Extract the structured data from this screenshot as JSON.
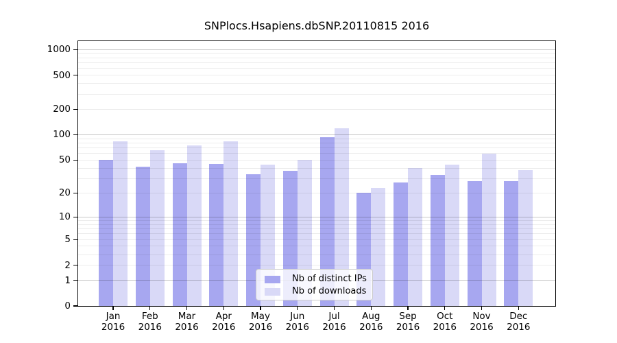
{
  "chart_data": {
    "type": "bar",
    "title": "SNPlocs.Hsapiens.dbSNP.20110815 2016",
    "year": "2016",
    "categories": [
      "Jan",
      "Feb",
      "Mar",
      "Apr",
      "May",
      "Jun",
      "Jul",
      "Aug",
      "Sep",
      "Oct",
      "Nov",
      "Dec"
    ],
    "series": [
      {
        "name": "Nb of distinct IPs",
        "color": "#a7a7f0",
        "values": [
          50,
          42,
          46,
          45,
          34,
          37,
          94,
          20,
          27,
          33,
          28,
          28
        ]
      },
      {
        "name": "Nb of downloads",
        "color": "#d9d9f7",
        "values": [
          84,
          65,
          75,
          84,
          44,
          50,
          120,
          23,
          40,
          44,
          60,
          38
        ]
      }
    ],
    "yscale": "log1p",
    "yticks": [
      0,
      1,
      2,
      5,
      10,
      20,
      50,
      100,
      200,
      500,
      1000
    ],
    "ylim": [
      0,
      1270
    ],
    "grid": {
      "orientation": "horizontal",
      "major_values": [
        1,
        10,
        100,
        1000
      ],
      "minor_values": [
        2,
        3,
        4,
        5,
        6,
        7,
        8,
        9,
        20,
        30,
        40,
        50,
        60,
        70,
        80,
        90,
        200,
        300,
        400,
        500,
        600,
        700,
        800,
        900
      ]
    },
    "legend_position": "lower center",
    "xlabel": "",
    "ylabel": ""
  },
  "colors": {
    "background": "#ffffff",
    "axis": "#000000",
    "legend_border": "#cccccc"
  }
}
